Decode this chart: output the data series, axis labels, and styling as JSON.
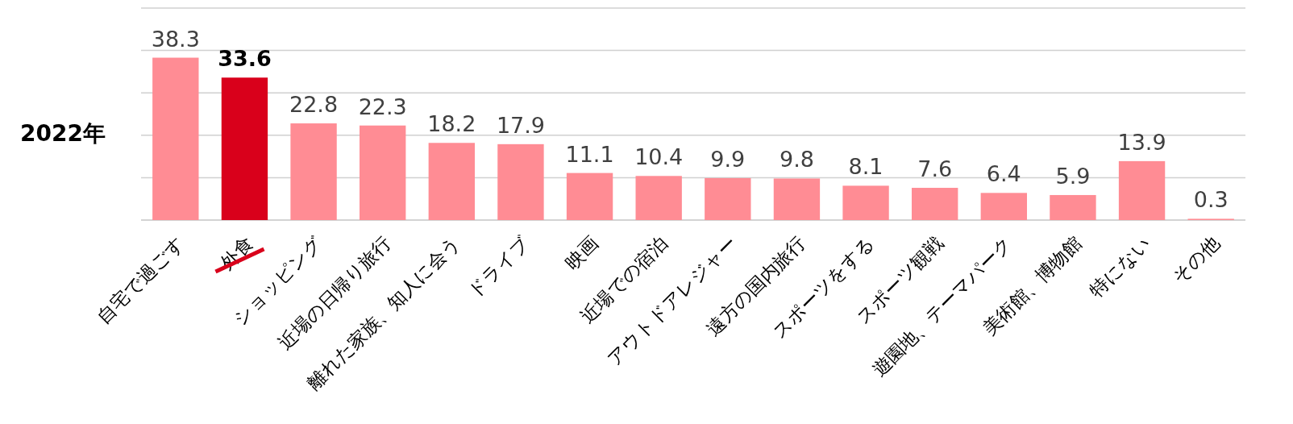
{
  "chart_data": {
    "type": "bar",
    "ylabel": "2022年",
    "categories": [
      "自宅で過ごす",
      "外食",
      "ショッピング",
      "近場の日帰り旅行",
      "離れた家族、知人に会う",
      "ドライブ",
      "映画",
      "近場での宿泊",
      "アウトドアレジャー",
      "遠方の国内旅行",
      "スポーツをする",
      "スポーツ観戦",
      "遊園地、テーマパーク",
      "美術館、博物館",
      "特にない",
      "その他"
    ],
    "values": [
      38.3,
      33.6,
      22.8,
      22.3,
      18.2,
      17.9,
      11.1,
      10.4,
      9.9,
      9.8,
      8.1,
      7.6,
      6.4,
      5.9,
      13.9,
      0.3
    ],
    "colors": [
      "#ff8c94",
      "#d9001b",
      "#ff8c94",
      "#ff8c94",
      "#ff8c94",
      "#ff8c94",
      "#ff8c94",
      "#ff8c94",
      "#ff8c94",
      "#ff8c94",
      "#ff8c94",
      "#ff8c94",
      "#ff8c94",
      "#ff8c94",
      "#ff8c94",
      "#ff8c94"
    ],
    "ylim": [
      0,
      50
    ],
    "yticks": [
      {
        "value": 0,
        "label": null
      },
      {
        "value": 10,
        "label": null
      },
      {
        "value": 20,
        "label": null
      },
      {
        "value": 30,
        "label": null
      },
      {
        "value": 40,
        "label": null
      },
      {
        "value": 50,
        "label": null
      }
    ],
    "grid": "y",
    "data_labels": true
  }
}
